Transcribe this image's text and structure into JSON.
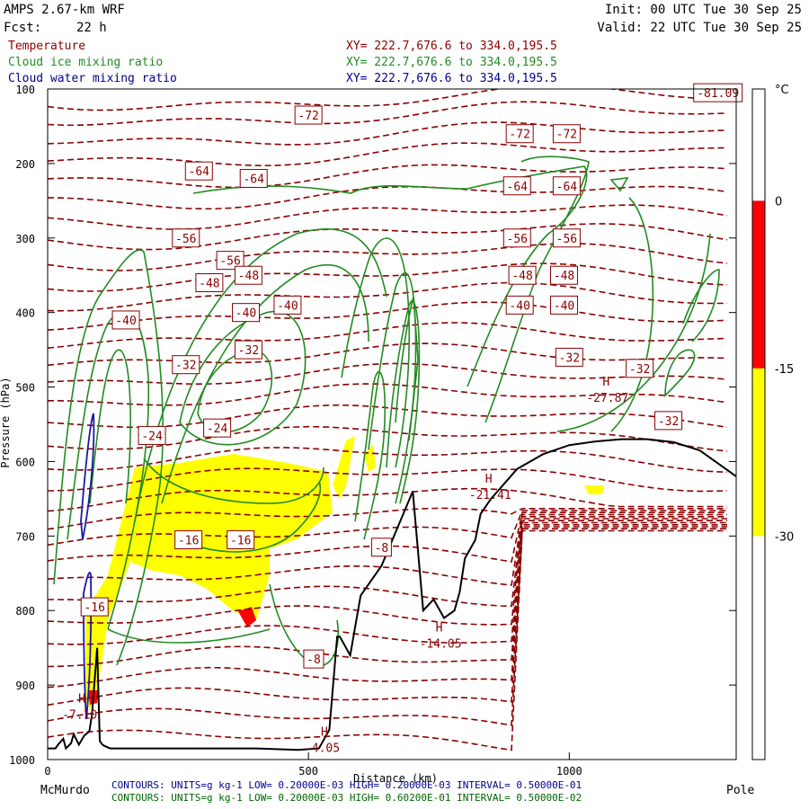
{
  "header": {
    "model": "AMPS 2.67-km WRF",
    "fcst_label": "Fcst:",
    "fcst_value": "22 h",
    "init": "Init: 00 UTC Tue 30 Sep 25",
    "valid": "Valid: 22 UTC Tue 30 Sep 25"
  },
  "legend": [
    {
      "name": "Temperature",
      "xy": "XY= 222.7,676.6 to 334.0,195.5",
      "color": "#8b0000"
    },
    {
      "name": "Cloud ice mixing ratio",
      "xy": "XY= 222.7,676.6 to 334.0,195.5",
      "color": "#228b22"
    },
    {
      "name": "Cloud water mixing ratio",
      "xy": "XY= 222.7,676.6 to 334.0,195.5",
      "color": "#00008b"
    }
  ],
  "footer": {
    "line1": "CONTOURS: UNITS=g kg-1 LOW= 0.20000E-03 HIGH= 0.20000E-03 INTERVAL= 0.50000E-01",
    "line2": "CONTOURS: UNITS=g kg-1 LOW= 0.20000E-03 HIGH= 0.60200E-01 INTERVAL= 0.50000E-02",
    "line1_color": "#00008b",
    "line2_color": "#006400"
  },
  "chart_data": {
    "type": "cross-section",
    "title": "AMPS 2.67-km WRF",
    "xlabel": "Distance (km)",
    "ylabel": "Pressure (hPa)",
    "xlim": [
      0,
      1320
    ],
    "ylim": [
      1000,
      100
    ],
    "x_ticks": [
      0,
      500,
      1000
    ],
    "y_ticks": [
      100,
      200,
      300,
      400,
      500,
      600,
      700,
      800,
      900,
      1000
    ],
    "x_end_labels": {
      "left": "McMurdo",
      "right": "Pole"
    },
    "colorbar": {
      "unit": "°C",
      "ticks": [
        0,
        -15,
        -30
      ],
      "bands": [
        {
          "from": 0,
          "to": -15,
          "color": "#ff0000"
        },
        {
          "from": -15,
          "to": -30,
          "color": "#ffff00"
        }
      ]
    },
    "temperature_labels": [
      {
        "text": "-81.09",
        "x": 1285,
        "p": 105
      },
      {
        "text": "-72",
        "x": 500,
        "p": 135
      },
      {
        "text": "-72",
        "x": 905,
        "p": 160
      },
      {
        "text": "-72",
        "x": 995,
        "p": 160
      },
      {
        "text": "-64",
        "x": 290,
        "p": 210
      },
      {
        "text": "-64",
        "x": 395,
        "p": 220
      },
      {
        "text": "-64",
        "x": 900,
        "p": 230
      },
      {
        "text": "-64",
        "x": 995,
        "p": 230
      },
      {
        "text": "-56",
        "x": 265,
        "p": 300
      },
      {
        "text": "-56",
        "x": 350,
        "p": 330
      },
      {
        "text": "-56",
        "x": 900,
        "p": 300
      },
      {
        "text": "-56",
        "x": 995,
        "p": 300
      },
      {
        "text": "-48",
        "x": 310,
        "p": 360
      },
      {
        "text": "-48",
        "x": 385,
        "p": 350
      },
      {
        "text": "-48",
        "x": 910,
        "p": 350
      },
      {
        "text": "-48",
        "x": 990,
        "p": 350
      },
      {
        "text": "-40",
        "x": 150,
        "p": 410
      },
      {
        "text": "-40",
        "x": 380,
        "p": 400
      },
      {
        "text": "-40",
        "x": 460,
        "p": 390
      },
      {
        "text": "-40",
        "x": 905,
        "p": 390
      },
      {
        "text": "-40",
        "x": 990,
        "p": 390
      },
      {
        "text": "-32",
        "x": 265,
        "p": 470
      },
      {
        "text": "-32",
        "x": 385,
        "p": 450
      },
      {
        "text": "-32",
        "x": 1000,
        "p": 460
      },
      {
        "text": "-32",
        "x": 1135,
        "p": 475
      },
      {
        "text": "-32",
        "x": 1190,
        "p": 545
      },
      {
        "text": "-24",
        "x": 200,
        "p": 565
      },
      {
        "text": "-24",
        "x": 325,
        "p": 555
      },
      {
        "text": "-16",
        "x": 270,
        "p": 705
      },
      {
        "text": "-16",
        "x": 370,
        "p": 705
      },
      {
        "text": "-16",
        "x": 90,
        "p": 795
      },
      {
        "text": "-8",
        "x": 510,
        "p": 865
      },
      {
        "text": "-8",
        "x": 640,
        "p": 715
      }
    ],
    "extrema": [
      {
        "kind": "H",
        "value": "-7.10",
        "x": 45,
        "p": 945
      },
      {
        "kind": "H",
        "value": "-4.05",
        "x": 510,
        "p": 990
      },
      {
        "kind": "H",
        "value": "-14.05",
        "x": 730,
        "p": 850
      },
      {
        "kind": "H",
        "value": "-21.41",
        "x": 825,
        "p": 650
      },
      {
        "kind": "H",
        "value": "-27.87",
        "x": 1050,
        "p": 520
      }
    ],
    "terrain": {
      "x": [
        0,
        15,
        20,
        30,
        35,
        45,
        50,
        60,
        70,
        80,
        85,
        95,
        100,
        105,
        110,
        120,
        200,
        300,
        400,
        480,
        520,
        540,
        555,
        560,
        580,
        600,
        640,
        700,
        720,
        740,
        760,
        780,
        790,
        800,
        820,
        830,
        840,
        850,
        900,
        950,
        1000,
        1050,
        1100,
        1150,
        1200,
        1250,
        1300,
        1320
      ],
      "p": [
        985,
        985,
        980,
        972,
        985,
        978,
        966,
        980,
        968,
        962,
        940,
        850,
        975,
        980,
        982,
        985,
        985,
        985,
        985,
        987,
        985,
        960,
        835,
        835,
        860,
        780,
        740,
        640,
        800,
        785,
        810,
        800,
        775,
        730,
        705,
        670,
        660,
        650,
        610,
        590,
        578,
        573,
        570,
        570,
        574,
        585,
        610,
        620
      ]
    }
  }
}
